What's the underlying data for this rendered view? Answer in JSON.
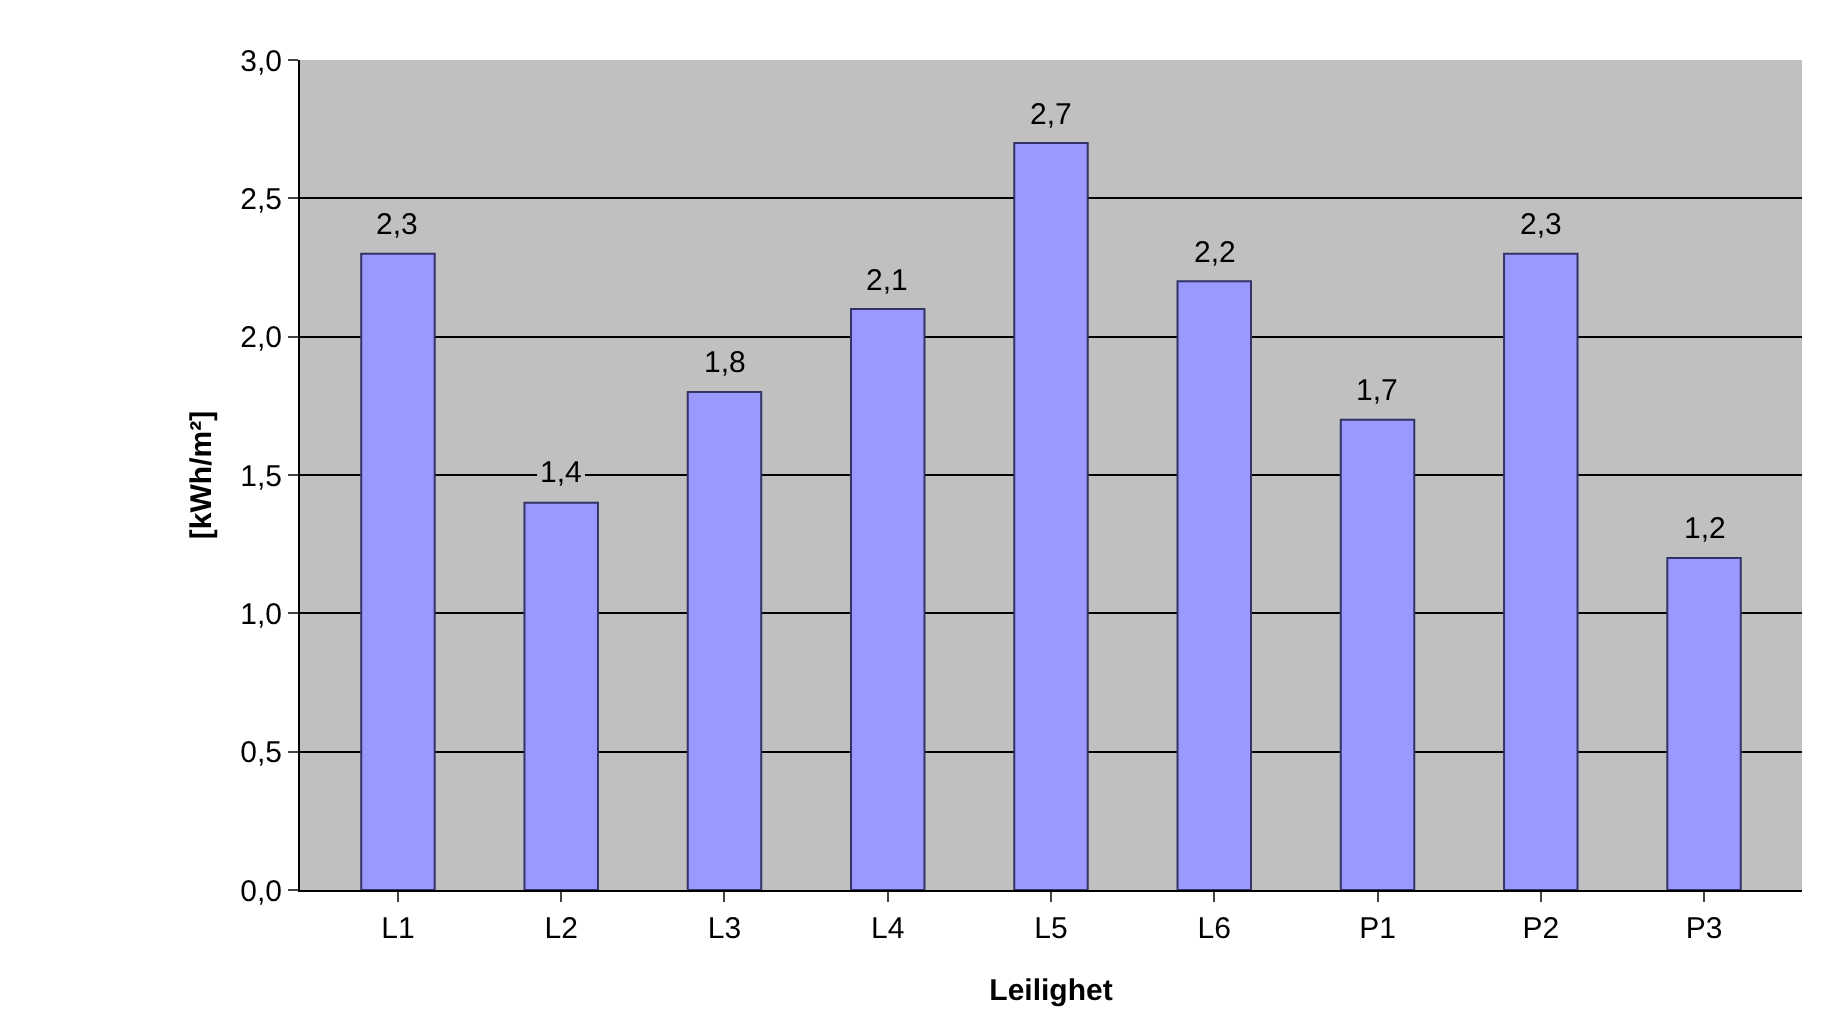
{
  "chart_data": {
    "type": "bar",
    "xlabel": "Leilighet",
    "ylabel": "[kWh/m²]",
    "categories": [
      "L1",
      "L2",
      "L3",
      "L4",
      "L5",
      "L6",
      "P1",
      "P2",
      "P3"
    ],
    "values": [
      2.3,
      1.4,
      1.8,
      2.1,
      2.7,
      2.2,
      1.7,
      2.3,
      1.2
    ],
    "value_labels": [
      "2,3",
      "1,4",
      "1,8",
      "2,1",
      "2,7",
      "2,2",
      "1,7",
      "2,3",
      "1,2"
    ],
    "color": "#9999ff",
    "ylim": [
      0,
      3
    ],
    "yticks": [
      {
        "value": 0,
        "label": "0,0"
      },
      {
        "value": 0.5,
        "label": "0,5"
      },
      {
        "value": 1,
        "label": "1,0"
      },
      {
        "value": 1.5,
        "label": "1,5"
      },
      {
        "value": 2,
        "label": "2,0"
      },
      {
        "value": 2.5,
        "label": "2,5"
      },
      {
        "value": 3,
        "label": "3,0"
      }
    ],
    "grid": "y",
    "legend": false
  }
}
